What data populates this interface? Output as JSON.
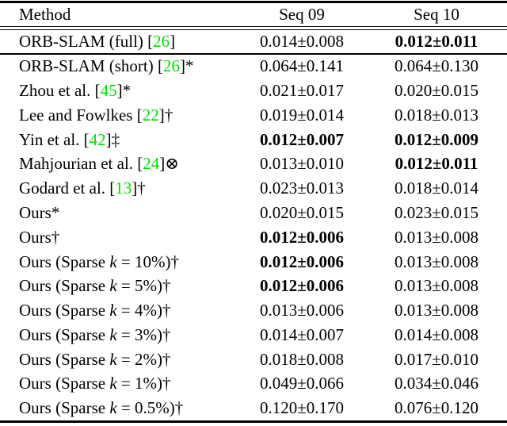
{
  "accent": {
    "citation_green": "#00dd00",
    "text_black": "#000000",
    "background": "#ffffff"
  },
  "table": {
    "columns": [
      {
        "label": "Method"
      },
      {
        "label": "Seq 09"
      },
      {
        "label": "Seq 10"
      }
    ],
    "rows": [
      {
        "method_parts": [
          {
            "text": "ORB-SLAM (full) [",
            "style": "plain"
          },
          {
            "text": "26",
            "style": "cite"
          },
          {
            "text": "]",
            "style": "plain"
          }
        ],
        "seq09": {
          "value": "0.014±0.008",
          "bold": false
        },
        "seq10": {
          "value": "0.012±0.011",
          "bold": true
        },
        "separator_after": "single"
      },
      {
        "method_parts": [
          {
            "text": "ORB-SLAM (short) [",
            "style": "plain"
          },
          {
            "text": "26",
            "style": "cite"
          },
          {
            "text": "]*",
            "style": "plain"
          }
        ],
        "seq09": {
          "value": "0.064±0.141",
          "bold": false
        },
        "seq10": {
          "value": "0.064±0.130",
          "bold": false
        },
        "separator_after": "none"
      },
      {
        "method_parts": [
          {
            "text": "Zhou et al. [",
            "style": "plain"
          },
          {
            "text": "45",
            "style": "cite"
          },
          {
            "text": "]*",
            "style": "plain"
          }
        ],
        "seq09": {
          "value": "0.021±0.017",
          "bold": false
        },
        "seq10": {
          "value": "0.020±0.015",
          "bold": false
        },
        "separator_after": "none"
      },
      {
        "method_parts": [
          {
            "text": "Lee and Fowlkes [",
            "style": "plain"
          },
          {
            "text": "22",
            "style": "cite"
          },
          {
            "text": "]†",
            "style": "plain"
          }
        ],
        "seq09": {
          "value": "0.019±0.014",
          "bold": false
        },
        "seq10": {
          "value": "0.018±0.013",
          "bold": false
        },
        "separator_after": "none"
      },
      {
        "method_parts": [
          {
            "text": "Yin et al. [",
            "style": "plain"
          },
          {
            "text": "42",
            "style": "cite"
          },
          {
            "text": "]‡",
            "style": "plain"
          }
        ],
        "seq09": {
          "value": "0.012±0.007",
          "bold": true
        },
        "seq10": {
          "value": "0.012±0.009",
          "bold": true
        },
        "separator_after": "none"
      },
      {
        "method_parts": [
          {
            "text": "Mahjourian et al. [",
            "style": "plain"
          },
          {
            "text": "24",
            "style": "cite"
          },
          {
            "text": "]⊗",
            "style": "plain"
          }
        ],
        "seq09": {
          "value": "0.013±0.010",
          "bold": false
        },
        "seq10": {
          "value": "0.012±0.011",
          "bold": true
        },
        "separator_after": "none"
      },
      {
        "method_parts": [
          {
            "text": "Godard et al. [",
            "style": "plain"
          },
          {
            "text": "13",
            "style": "cite"
          },
          {
            "text": "]†",
            "style": "plain"
          }
        ],
        "seq09": {
          "value": "0.023±0.013",
          "bold": false
        },
        "seq10": {
          "value": "0.018±0.014",
          "bold": false
        },
        "separator_after": "none"
      },
      {
        "method_parts": [
          {
            "text": "Ours*",
            "style": "plain"
          }
        ],
        "seq09": {
          "value": "0.020±0.015",
          "bold": false
        },
        "seq10": {
          "value": "0.023±0.015",
          "bold": false
        },
        "separator_after": "none"
      },
      {
        "method_parts": [
          {
            "text": "Ours†",
            "style": "plain"
          }
        ],
        "seq09": {
          "value": "0.012±0.006",
          "bold": true
        },
        "seq10": {
          "value": "0.013±0.008",
          "bold": false
        },
        "separator_after": "none"
      },
      {
        "method_parts": [
          {
            "text": "Ours (Sparse ",
            "style": "plain"
          },
          {
            "text": "k",
            "style": "math"
          },
          {
            "text": " = 10%)†",
            "style": "plain"
          }
        ],
        "seq09": {
          "value": "0.012±0.006",
          "bold": true
        },
        "seq10": {
          "value": "0.013±0.008",
          "bold": false
        },
        "separator_after": "none"
      },
      {
        "method_parts": [
          {
            "text": "Ours (Sparse ",
            "style": "plain"
          },
          {
            "text": "k",
            "style": "math"
          },
          {
            "text": " = 5%)†",
            "style": "plain"
          }
        ],
        "seq09": {
          "value": "0.012±0.006",
          "bold": true
        },
        "seq10": {
          "value": "0.013±0.008",
          "bold": false
        },
        "separator_after": "none"
      },
      {
        "method_parts": [
          {
            "text": "Ours (Sparse ",
            "style": "plain"
          },
          {
            "text": "k",
            "style": "math"
          },
          {
            "text": " = 4%)†",
            "style": "plain"
          }
        ],
        "seq09": {
          "value": "0.013±0.006",
          "bold": false
        },
        "seq10": {
          "value": "0.013±0.008",
          "bold": false
        },
        "separator_after": "none"
      },
      {
        "method_parts": [
          {
            "text": "Ours (Sparse ",
            "style": "plain"
          },
          {
            "text": "k",
            "style": "math"
          },
          {
            "text": " = 3%)†",
            "style": "plain"
          }
        ],
        "seq09": {
          "value": "0.014±0.007",
          "bold": false
        },
        "seq10": {
          "value": "0.014±0.008",
          "bold": false
        },
        "separator_after": "none"
      },
      {
        "method_parts": [
          {
            "text": "Ours (Sparse ",
            "style": "plain"
          },
          {
            "text": "k",
            "style": "math"
          },
          {
            "text": " = 2%)†",
            "style": "plain"
          }
        ],
        "seq09": {
          "value": "0.018±0.008",
          "bold": false
        },
        "seq10": {
          "value": "0.017±0.010",
          "bold": false
        },
        "separator_after": "none"
      },
      {
        "method_parts": [
          {
            "text": "Ours (Sparse ",
            "style": "plain"
          },
          {
            "text": "k",
            "style": "math"
          },
          {
            "text": " = 1%)†",
            "style": "plain"
          }
        ],
        "seq09": {
          "value": "0.049±0.066",
          "bold": false
        },
        "seq10": {
          "value": "0.034±0.046",
          "bold": false
        },
        "separator_after": "none"
      },
      {
        "method_parts": [
          {
            "text": "Ours (Sparse ",
            "style": "plain"
          },
          {
            "text": "k",
            "style": "math"
          },
          {
            "text": " = 0.5%)†",
            "style": "plain"
          }
        ],
        "seq09": {
          "value": "0.120±0.170",
          "bold": false
        },
        "seq10": {
          "value": "0.076±0.120",
          "bold": false
        },
        "separator_after": "none"
      }
    ]
  }
}
